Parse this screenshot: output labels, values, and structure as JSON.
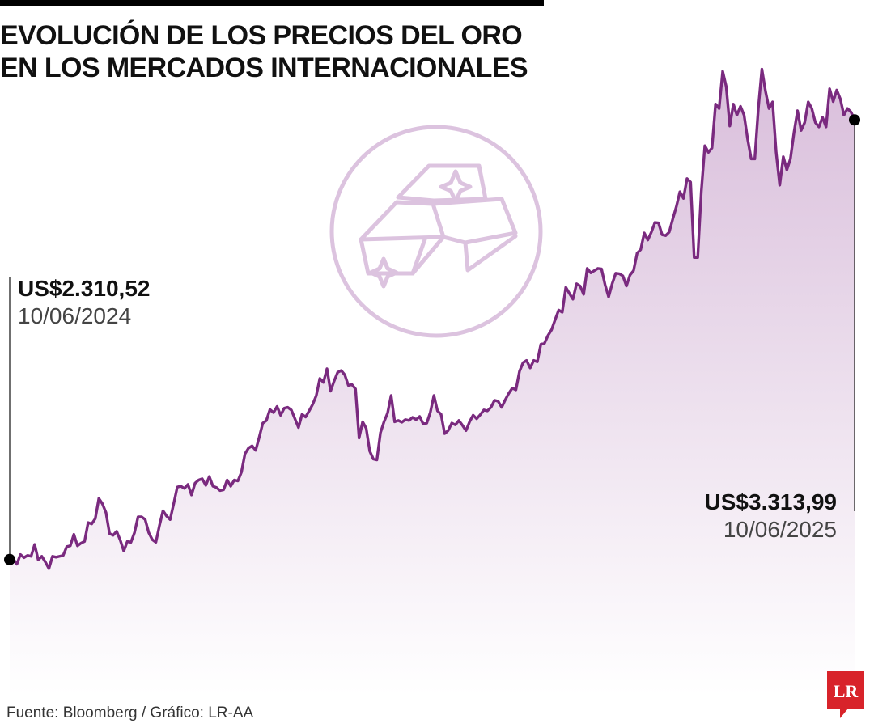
{
  "header": {
    "title_line1": "EVOLUCIÓN DE LOS PRECIOS DEL ORO",
    "title_line2": "EN LOS MERCADOS INTERNACIONALES"
  },
  "annotations": {
    "start": {
      "value": "US$2.310,52",
      "date": "10/06/2024"
    },
    "end": {
      "value": "US$3.313,99",
      "date": "10/06/2025"
    }
  },
  "footer": {
    "source": "Fuente: Bloomberg / Gráfico: LR-AA"
  },
  "logo": {
    "text": "LR"
  },
  "icon": {
    "name": "gold-bars-icon"
  },
  "colors": {
    "line": "#7a2a7f",
    "fill_top": "#d9bedb",
    "fill_bottom": "#ffffff",
    "icon": "#dcc3df",
    "logo": "#d8232a"
  },
  "chart_data": {
    "type": "area",
    "title": "EVOLUCIÓN DE LOS PRECIOS DEL ORO EN LOS MERCADOS INTERNACIONALES",
    "xlabel": "",
    "ylabel": "",
    "x_start": "10/06/2024",
    "x_end": "10/06/2025",
    "ylim": [
      2000,
      3440
    ],
    "grid": false,
    "legend": "none",
    "series": [
      {
        "values": [
          2310.52,
          2312,
          2300,
          2322,
          2315,
          2320,
          2318,
          2345,
          2310,
          2318,
          2305,
          2290,
          2318,
          2316,
          2318,
          2320,
          2340,
          2342,
          2368,
          2342,
          2348,
          2352,
          2395,
          2392,
          2404,
          2450,
          2438,
          2418,
          2370,
          2366,
          2375,
          2355,
          2330,
          2352,
          2350,
          2372,
          2408,
          2408,
          2402,
          2372,
          2356,
          2350,
          2388,
          2422,
          2410,
          2402,
          2438,
          2476,
          2478,
          2473,
          2482,
          2458,
          2485,
          2492,
          2495,
          2480,
          2500,
          2478,
          2475,
          2468,
          2470,
          2492,
          2478,
          2492,
          2490,
          2510,
          2552,
          2565,
          2570,
          2560,
          2590,
          2622,
          2628,
          2653,
          2646,
          2660,
          2640,
          2656,
          2658,
          2652,
          2632,
          2612,
          2642,
          2636,
          2650,
          2665,
          2685,
          2724,
          2715,
          2746,
          2695,
          2718,
          2738,
          2742,
          2732,
          2708,
          2710,
          2700,
          2588,
          2625,
          2610,
          2558,
          2540,
          2538,
          2600,
          2625,
          2645,
          2685,
          2625,
          2628,
          2624,
          2630,
          2628,
          2635,
          2630,
          2637,
          2620,
          2622,
          2647,
          2685,
          2650,
          2642,
          2598,
          2605,
          2622,
          2618,
          2628,
          2617,
          2605,
          2625,
          2640,
          2632,
          2641,
          2652,
          2650,
          2658,
          2674,
          2672,
          2658,
          2675,
          2690,
          2702,
          2698,
          2740,
          2760,
          2765,
          2748,
          2765,
          2762,
          2802,
          2804,
          2822,
          2835,
          2858,
          2880,
          2875,
          2932,
          2918,
          2905,
          2940,
          2935,
          2916,
          2975,
          2965,
          2970,
          2975,
          2974,
          2938,
          2910,
          2940,
          2964,
          2963,
          2958,
          2935,
          2960,
          2970,
          3010,
          3018,
          3056,
          3040,
          3058,
          3080,
          3079,
          3052,
          3050,
          3058,
          3088,
          3116,
          3150,
          3135,
          3180,
          3172,
          3000,
          3000,
          3150,
          3255,
          3240,
          3250,
          3350,
          3340,
          3425,
          3390,
          3300,
          3350,
          3325,
          3345,
          3325,
          3270,
          3225,
          3225,
          3340,
          3430,
          3380,
          3340,
          3355,
          3240,
          3165,
          3230,
          3200,
          3225,
          3285,
          3335,
          3290,
          3308,
          3355,
          3340,
          3308,
          3298,
          3320,
          3298,
          3385,
          3356,
          3382,
          3362,
          3325,
          3340,
          3332,
          3313.99
        ]
      }
    ]
  }
}
